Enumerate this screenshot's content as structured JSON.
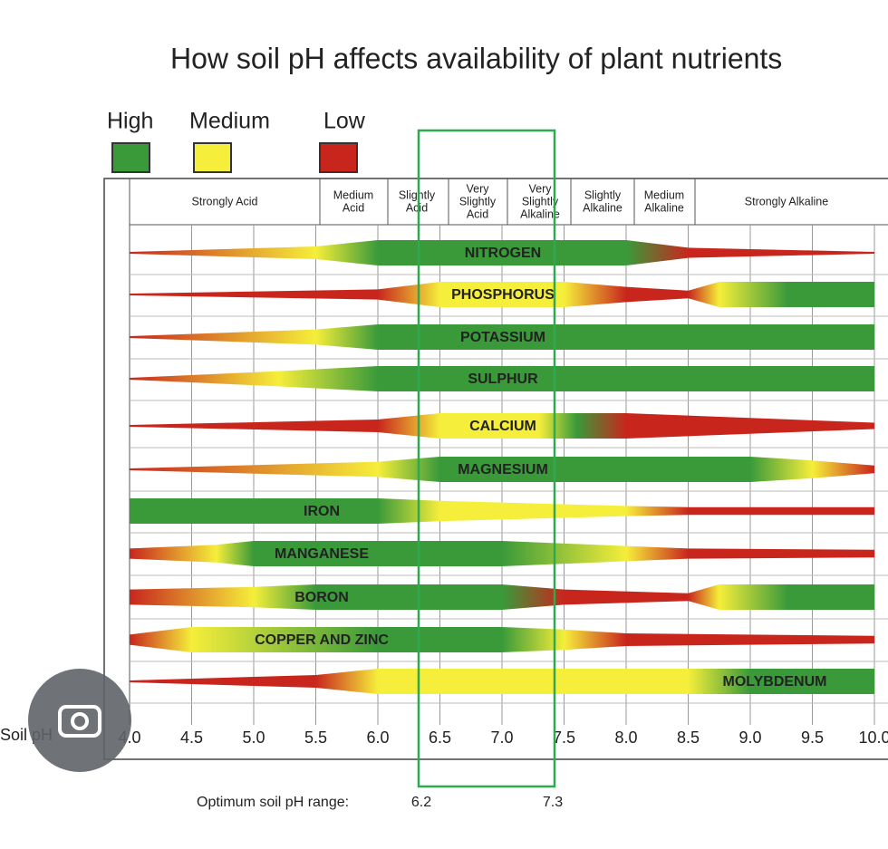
{
  "title": "How soil pH affects availability of plant nutrients",
  "legend": [
    "High",
    "Medium",
    "Low"
  ],
  "zones": [
    {
      "lines": [
        "Strongly Acid"
      ]
    },
    {
      "lines": [
        "Medium",
        "Acid"
      ]
    },
    {
      "lines": [
        "Slightly",
        "Acid"
      ]
    },
    {
      "lines": [
        "Very",
        "Slightly",
        "Acid"
      ]
    },
    {
      "lines": [
        "Very",
        "Slightly",
        "Alkaline"
      ]
    },
    {
      "lines": [
        "Slightly",
        "Alkaline"
      ]
    },
    {
      "lines": [
        "Medium",
        "Alkaline"
      ]
    },
    {
      "lines": [
        "Strongly Alkaline"
      ]
    }
  ],
  "nutrients": [
    "NITROGEN",
    "PHOSPHORUS",
    "POTASSIUM",
    "SULPHUR",
    "CALCIUM",
    "MAGNESIUM",
    "IRON",
    "MANGANESE",
    "BORON",
    "COPPER AND ZINC",
    "MOLYBDENUM"
  ],
  "axis": {
    "label": "Soil pH",
    "ticks": [
      "4.0",
      "4.5",
      "5.0",
      "5.5",
      "6.0",
      "6.5",
      "7.0",
      "7.5",
      "8.0",
      "8.5",
      "9.0",
      "9.5",
      "10.0"
    ]
  },
  "optimum": {
    "label": "Optimum soil pH range:",
    "low": "6.2",
    "high": "7.3"
  }
}
